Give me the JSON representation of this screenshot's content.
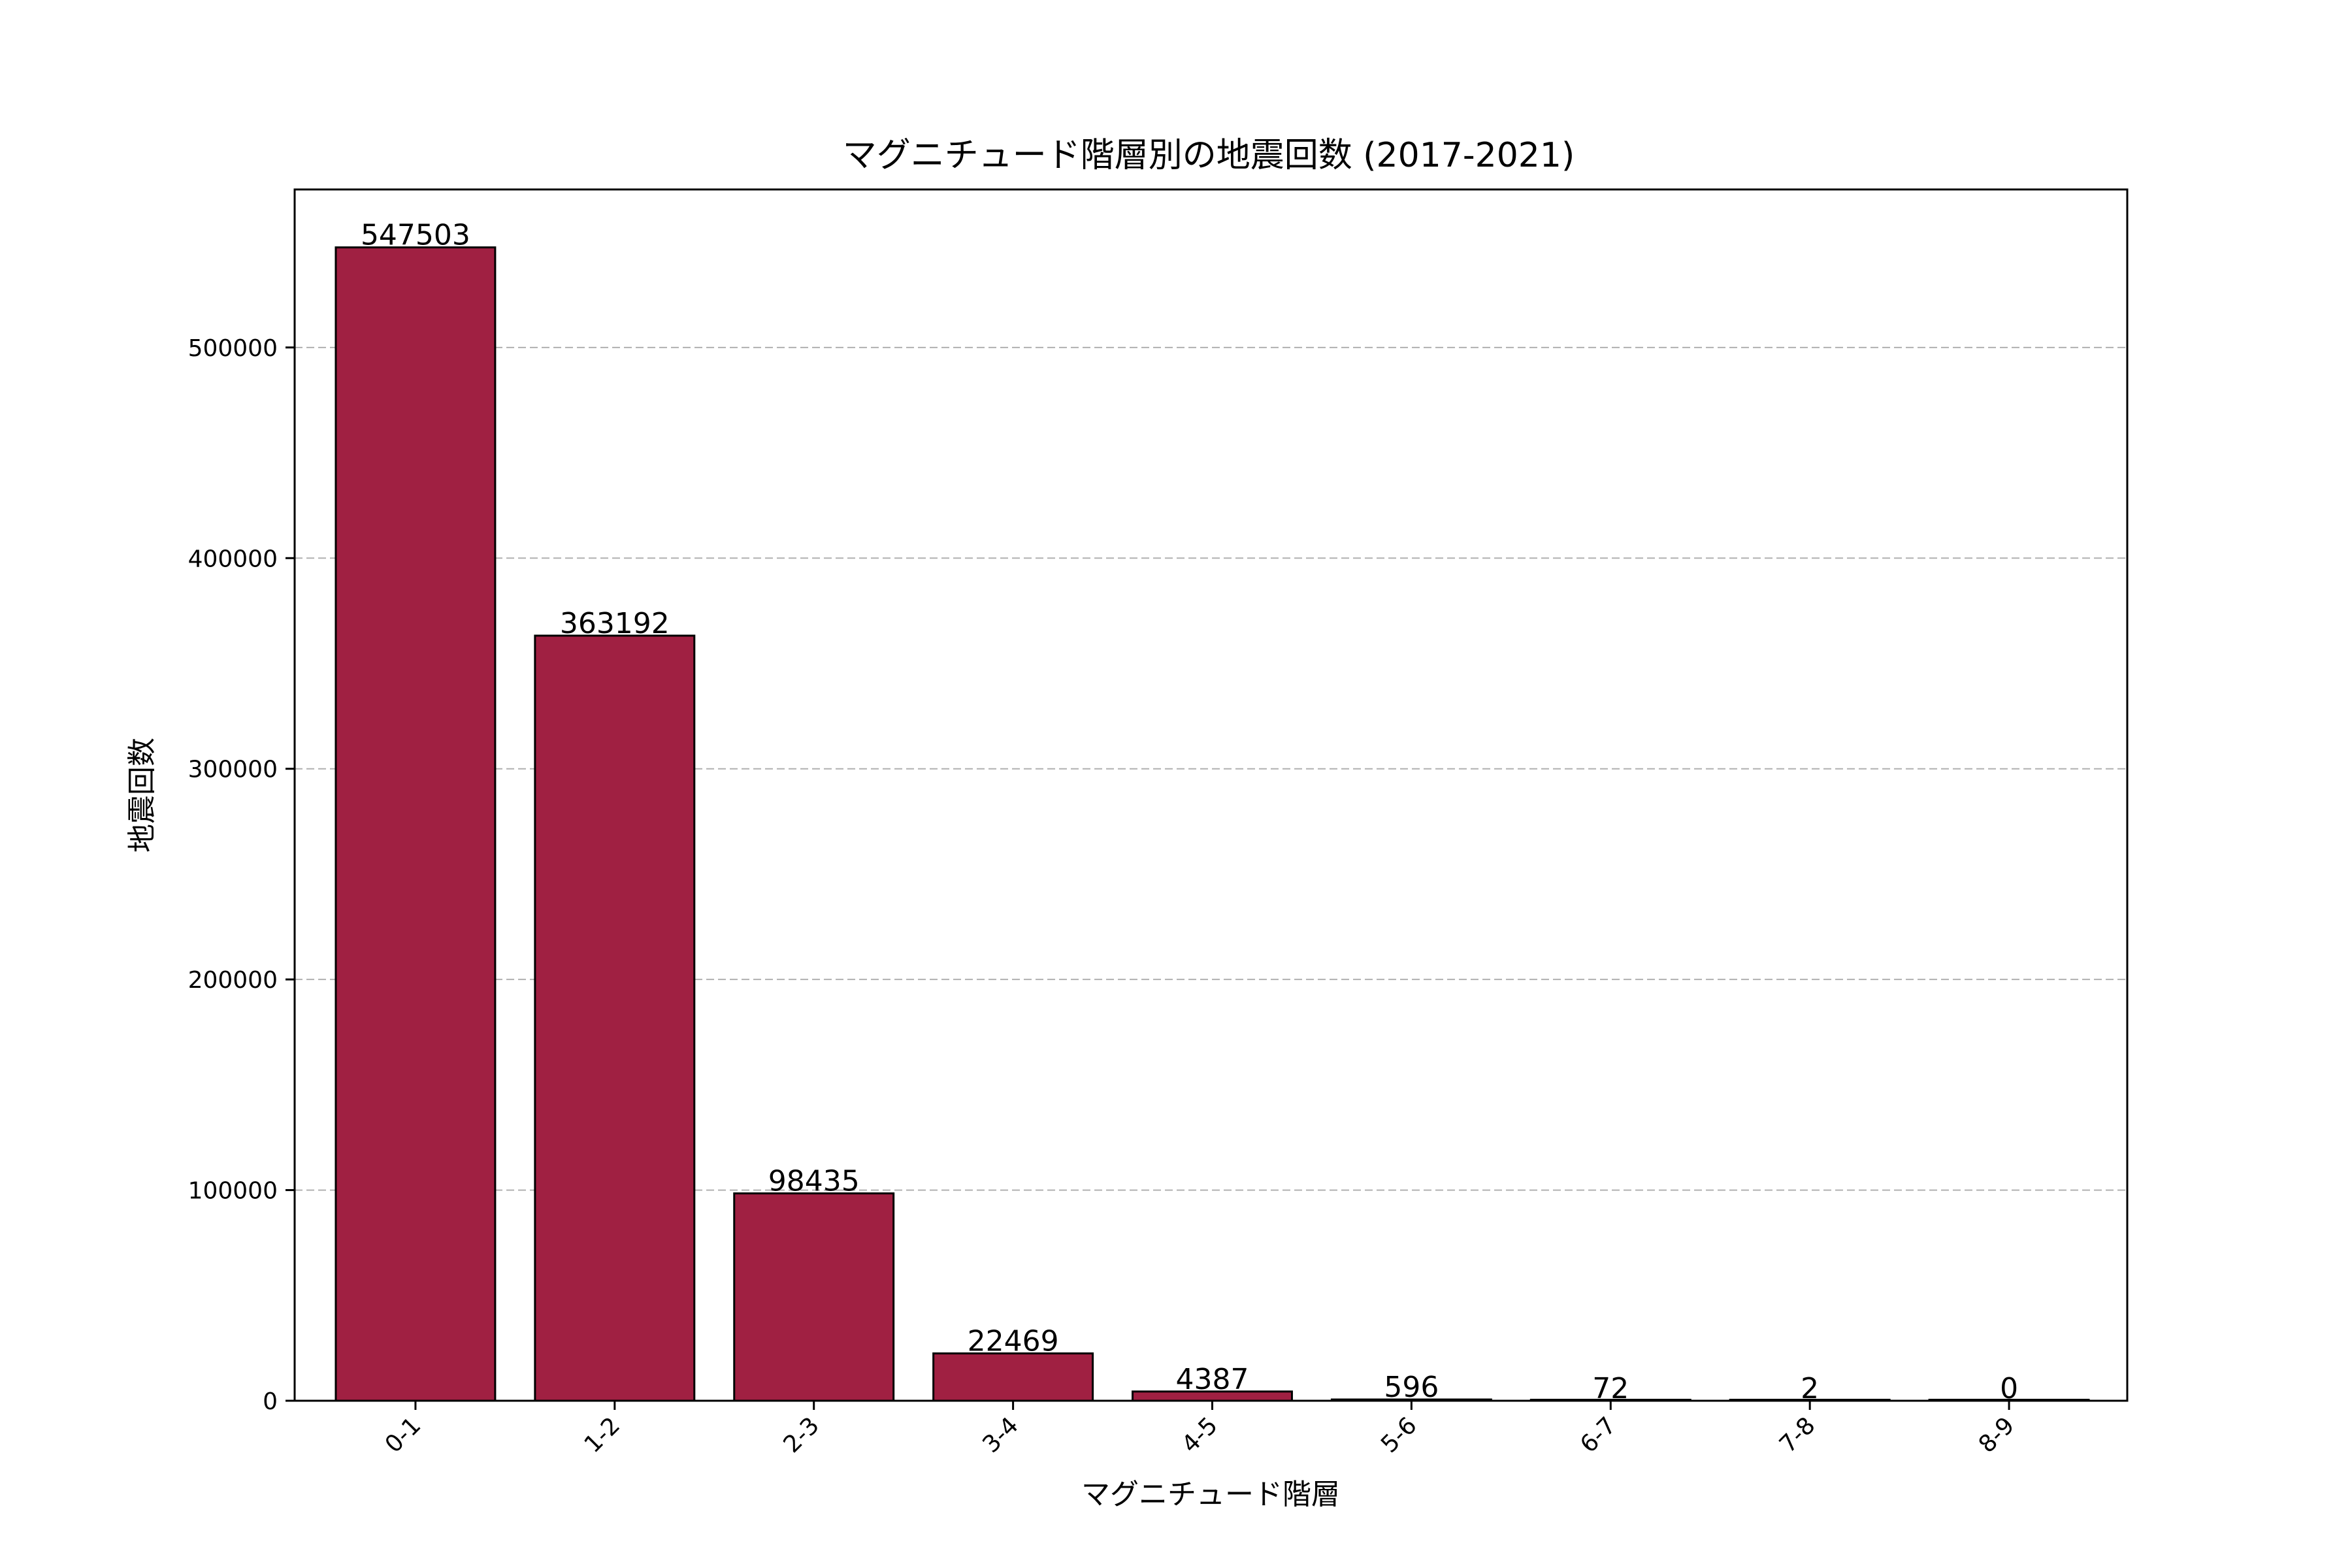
{
  "chart_data": {
    "type": "bar",
    "title": "マグニチュード階層別の地震回数 (2017-2021)",
    "xlabel": "マグニチュード階層",
    "ylabel": "地震回数",
    "categories": [
      "0-1",
      "1-2",
      "2-3",
      "3-4",
      "4-5",
      "5-6",
      "6-7",
      "7-8",
      "8-9"
    ],
    "values": [
      547503,
      363192,
      98435,
      22469,
      4387,
      596,
      72,
      2,
      0
    ],
    "data_labels": [
      "547503",
      "363192",
      "98435",
      "22469",
      "4387",
      "596",
      "72",
      "2",
      "0"
    ],
    "yticks": [
      0,
      100000,
      200000,
      300000,
      400000,
      500000
    ],
    "ytick_labels": [
      "0",
      "100000",
      "200000",
      "300000",
      "400000",
      "500000"
    ],
    "ylim": [
      0,
      575000
    ],
    "grid": "y-dashed",
    "bar_color": "#a02042",
    "bar_edge_color": "#000000",
    "grid_color": "#b0b0b0"
  }
}
